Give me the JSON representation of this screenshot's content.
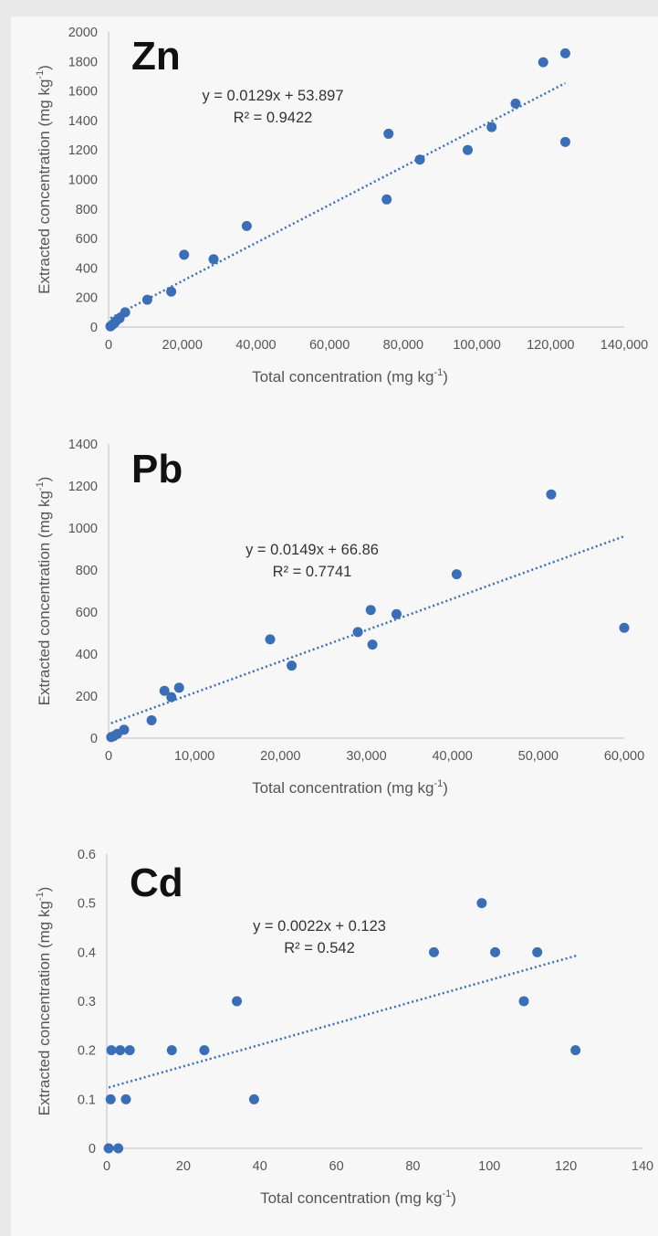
{
  "chart_data": [
    {
      "type": "scatter",
      "title": "Zn",
      "xlabel": "Total concentration (mg kg",
      "xlabel_sup": "-1",
      "xlabel_end": ")",
      "ylabel": "Extracted concentration (mg kg",
      "ylabel_sup": "-1",
      "ylabel_end": ")",
      "xlim": [
        0,
        140000
      ],
      "ylim": [
        0,
        2000
      ],
      "xticks": [
        0,
        20000,
        40000,
        60000,
        80000,
        100000,
        120000,
        140000
      ],
      "xtick_labels": [
        "0",
        "20,000",
        "40,000",
        "60,000",
        "80,000",
        "100,000",
        "120,000",
        "140,000"
      ],
      "yticks": [
        0,
        200,
        400,
        600,
        800,
        1000,
        1200,
        1400,
        1600,
        1800,
        2000
      ],
      "ytick_labels": [
        "0",
        "200",
        "400",
        "600",
        "800",
        "1000",
        "1200",
        "1400",
        "1600",
        "1800",
        "2000"
      ],
      "equation": "y = 0.0129x + 53.897",
      "r2": "R² = 0.9422",
      "trend": {
        "slope": 0.0129,
        "intercept": 53.897,
        "x_start": 500,
        "x_end": 124000
      },
      "color": "#3a6fb7",
      "points": [
        [
          500,
          5
        ],
        [
          1000,
          15
        ],
        [
          1500,
          25
        ],
        [
          2000,
          40
        ],
        [
          3000,
          60
        ],
        [
          4500,
          100
        ],
        [
          10500,
          185
        ],
        [
          17000,
          240
        ],
        [
          20500,
          490
        ],
        [
          28500,
          460
        ],
        [
          37500,
          685
        ],
        [
          75500,
          865
        ],
        [
          76000,
          1310
        ],
        [
          84500,
          1135
        ],
        [
          97500,
          1200
        ],
        [
          104000,
          1355
        ],
        [
          110500,
          1515
        ],
        [
          118000,
          1795
        ],
        [
          124000,
          1855
        ],
        [
          124000,
          1255
        ]
      ]
    },
    {
      "type": "scatter",
      "title": "Pb",
      "xlabel": "Total concentration (mg kg",
      "xlabel_sup": "-1",
      "xlabel_end": ")",
      "ylabel": "Extracted concentration (mg kg",
      "ylabel_sup": "-1",
      "ylabel_end": ")",
      "xlim": [
        0,
        60000
      ],
      "ylim": [
        0,
        1400
      ],
      "xticks": [
        0,
        10000,
        20000,
        30000,
        40000,
        50000,
        60000
      ],
      "xtick_labels": [
        "0",
        "10,000",
        "20,000",
        "30,000",
        "40,000",
        "50,000",
        "60,000"
      ],
      "yticks": [
        0,
        200,
        400,
        600,
        800,
        1000,
        1200,
        1400
      ],
      "ytick_labels": [
        "0",
        "200",
        "400",
        "600",
        "800",
        "1000",
        "1200",
        "1400"
      ],
      "equation": "y = 0.0149x + 66.86",
      "r2": "R² = 0.7741",
      "trend": {
        "slope": 0.0149,
        "intercept": 66.86,
        "x_start": 300,
        "x_end": 60000
      },
      "color": "#3a6fb7",
      "points": [
        [
          300,
          5
        ],
        [
          600,
          10
        ],
        [
          1000,
          20
        ],
        [
          1800,
          40
        ],
        [
          5000,
          85
        ],
        [
          6500,
          225
        ],
        [
          7300,
          195
        ],
        [
          8200,
          240
        ],
        [
          18800,
          470
        ],
        [
          21300,
          345
        ],
        [
          29000,
          505
        ],
        [
          30500,
          610
        ],
        [
          30700,
          445
        ],
        [
          33500,
          590
        ],
        [
          40500,
          780
        ],
        [
          51500,
          1160
        ],
        [
          60000,
          525
        ]
      ]
    },
    {
      "type": "scatter",
      "title": "Cd",
      "xlabel": "Total concentration (mg kg",
      "xlabel_sup": "-1",
      "xlabel_end": ")",
      "ylabel": "Extracted concentration (mg kg",
      "ylabel_sup": "-1",
      "ylabel_end": ")",
      "xlim": [
        0,
        140
      ],
      "ylim": [
        0,
        0.6
      ],
      "xticks": [
        0,
        20,
        40,
        60,
        80,
        100,
        120,
        140
      ],
      "xtick_labels": [
        "0",
        "20",
        "40",
        "60",
        "80",
        "100",
        "120",
        "140"
      ],
      "yticks": [
        0,
        0.1,
        0.2,
        0.3,
        0.4,
        0.5,
        0.6
      ],
      "ytick_labels": [
        "0",
        "0.1",
        "0.2",
        "0.3",
        "0.4",
        "0.5",
        "0.6"
      ],
      "equation": "y = 0.0022x + 0.123",
      "r2": "R² = 0.542",
      "trend": {
        "slope": 0.0022,
        "intercept": 0.123,
        "x_start": 0.5,
        "x_end": 123
      },
      "color": "#3a6fb7",
      "points": [
        [
          0.5,
          0
        ],
        [
          3,
          0
        ],
        [
          1,
          0.1
        ],
        [
          5,
          0.1
        ],
        [
          1.2,
          0.2
        ],
        [
          3.5,
          0.2
        ],
        [
          6,
          0.2
        ],
        [
          17,
          0.2
        ],
        [
          25.5,
          0.2
        ],
        [
          34,
          0.3
        ],
        [
          38.5,
          0.1
        ],
        [
          85.5,
          0.4
        ],
        [
          98,
          0.5
        ],
        [
          101.5,
          0.4
        ],
        [
          109,
          0.3
        ],
        [
          112.5,
          0.4
        ],
        [
          122.5,
          0.2
        ]
      ]
    }
  ]
}
